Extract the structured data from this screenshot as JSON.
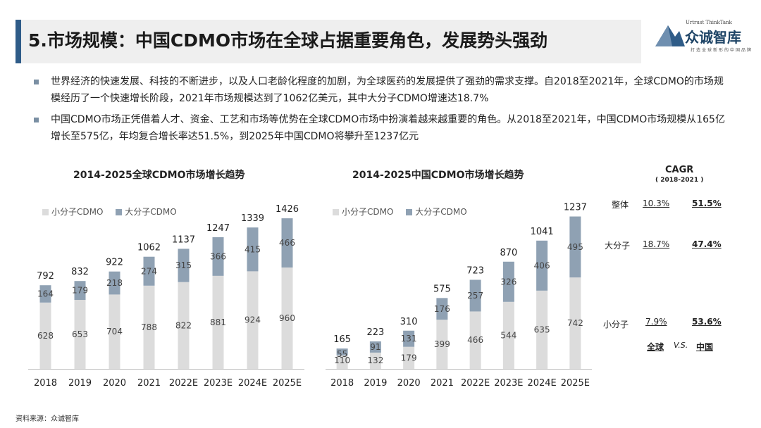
{
  "header": {
    "title": "5.市场规模：中国CDMO市场在全球占据重要角色，发展势头强劲"
  },
  "logo": {
    "sub": "Urtrust ThinkTank",
    "name": "众诚智库",
    "tagline": "打造全球新形的中国品牌"
  },
  "bullets": [
    "世界经济的快速发展、科技的不断进步，以及人口老龄化程度的加剧，为全球医药的发展提供了强劲的需求支撑。自2018至2021年，全球CDMO的市场规模经历了一个快速增长阶段，2021年市场规模达到了1062亿美元，其中大分子CDMO增速达18.7%",
    "中国CDMO市场正凭借着人才、资金、工艺和市场等优势在全球CDMO市场中扮演着越来越重要的角色。从2018至2021年，中国CDMO市场规模从165亿增长至575亿，年均复合增长率达51.5%，到2025年中国CDMO将攀升至1237亿元"
  ],
  "chart_data": [
    {
      "type": "bar",
      "stacked": true,
      "title": "2014-2025全球CDMO市场增长趋势",
      "categories": [
        "2018",
        "2019",
        "2020",
        "2021",
        "2022E",
        "2023E",
        "2024E",
        "2025E"
      ],
      "series": [
        {
          "name": "小分子CDMO",
          "values": [
            628,
            653,
            704,
            788,
            822,
            881,
            924,
            960
          ]
        },
        {
          "name": "大分子CDMO",
          "values": [
            164,
            179,
            218,
            274,
            315,
            366,
            415,
            466
          ]
        }
      ],
      "totals": [
        792,
        832,
        922,
        1062,
        1137,
        1247,
        1339,
        1426
      ],
      "legend": "top-left"
    },
    {
      "type": "bar",
      "stacked": true,
      "title": "2014-2025中国CDMO市场增长趋势",
      "categories": [
        "2018",
        "2019",
        "2020",
        "2021",
        "2022E",
        "2023E",
        "2024E",
        "2025E"
      ],
      "series": [
        {
          "name": "小分子CDMO",
          "values": [
            110,
            132,
            179,
            399,
            466,
            544,
            635,
            742
          ]
        },
        {
          "name": "大分子CDMO",
          "values": [
            55,
            91,
            131,
            176,
            257,
            326,
            406,
            495
          ]
        }
      ],
      "totals": [
        165,
        223,
        310,
        575,
        723,
        870,
        1041,
        1237
      ],
      "legend": "top-left"
    }
  ],
  "colors": {
    "small": "#dcdcdc",
    "large": "#8fa1b3",
    "accent": "#2f5c88"
  },
  "cagr": {
    "title": "CAGR",
    "subtitle": "( 2018-2021 )",
    "rows": [
      {
        "label": "整体",
        "global": "10.3%",
        "china": "51.5%"
      },
      {
        "label": "大分子",
        "global": "18.7%",
        "china": "47.4%"
      },
      {
        "label": "小分子",
        "global": "7.9%",
        "china": "53.6%"
      }
    ],
    "col_global": "全球",
    "vs": "V.S.",
    "col_china": "中国"
  },
  "footer": {
    "source": "资料来源：众诚智库"
  }
}
